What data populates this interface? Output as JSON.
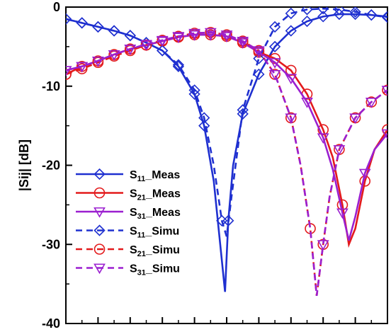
{
  "chart_data": {
    "type": "line",
    "ylabel": "|Sij| [dB]",
    "ylim": [
      -40,
      0
    ],
    "yticks": [
      "0",
      "-10",
      "-20",
      "-30",
      "-40"
    ],
    "xlim": [
      1,
      11
    ],
    "grid": false,
    "legend": {
      "placement": "lower-left",
      "entries": [
        {
          "sub": "11",
          "suffix": "_Meas"
        },
        {
          "sub": "21",
          "suffix": "_Meas"
        },
        {
          "sub": "31",
          "suffix": "_Meas"
        },
        {
          "sub": "11",
          "suffix": "_Simu"
        },
        {
          "sub": "21",
          "suffix": "_Simu"
        },
        {
          "sub": "31",
          "suffix": "_Simu"
        }
      ]
    },
    "series": [
      {
        "prefix": "S",
        "sub": "11",
        "suffix": "_Meas",
        "color": "#1f30d0",
        "dash": "solid",
        "marker": "diamond",
        "x": [
          1,
          1.5,
          2,
          2.5,
          3,
          3.5,
          4,
          4.5,
          5,
          5.3,
          5.6,
          5.8,
          5.95,
          6.05,
          6.2,
          6.5,
          7,
          7.5,
          8,
          8.5,
          9,
          9.5,
          10,
          10.5,
          11
        ],
        "y": [
          -1.5,
          -2.0,
          -2.5,
          -3.0,
          -3.6,
          -4.5,
          -5.5,
          -7.5,
          -11.0,
          -15.0,
          -22.0,
          -30.0,
          -36.0,
          -27.0,
          -20.0,
          -13.5,
          -8.5,
          -5.0,
          -3.0,
          -1.8,
          -1.2,
          -0.9,
          -0.9,
          -1.0,
          -1.2
        ],
        "marker_x": [
          1,
          1.5,
          2,
          2.5,
          3,
          3.5,
          4,
          4.5,
          5,
          5.3,
          6.05,
          6.5,
          7,
          7.5,
          8,
          8.5,
          9,
          9.5,
          10,
          10.5,
          11
        ]
      },
      {
        "prefix": "S",
        "sub": "21",
        "suffix": "_Meas",
        "color": "#e31a1c",
        "dash": "solid",
        "marker": "circle",
        "x": [
          1,
          1.5,
          2,
          2.5,
          3,
          3.5,
          4,
          4.5,
          5,
          5.5,
          6,
          6.5,
          7,
          7.5,
          8,
          8.5,
          9,
          9.3,
          9.6,
          9.8,
          10,
          10.3,
          10.6,
          11
        ],
        "y": [
          -8.5,
          -7.5,
          -6.8,
          -6.0,
          -5.3,
          -4.8,
          -4.3,
          -3.8,
          -3.5,
          -3.5,
          -3.7,
          -4.5,
          -5.7,
          -6.5,
          -8.0,
          -11.0,
          -15.5,
          -19.0,
          -25.0,
          -30.0,
          -28.0,
          -22.0,
          -18.0,
          -15.5
        ],
        "marker_x": [
          1,
          1.5,
          2,
          2.5,
          3,
          3.5,
          4,
          4.5,
          5,
          5.5,
          6,
          6.5,
          7,
          7.5,
          8,
          8.5,
          9,
          9.6,
          10.3,
          11
        ]
      },
      {
        "prefix": "S",
        "sub": "31",
        "suffix": "_Meas",
        "color": "#9b1fd0",
        "dash": "solid",
        "marker": "triangle-down",
        "x": [
          1,
          1.5,
          2,
          2.5,
          3,
          3.5,
          4,
          4.5,
          5,
          5.5,
          6,
          6.5,
          7,
          7.5,
          8,
          8.5,
          9,
          9.3,
          9.6,
          9.8,
          10,
          10.3,
          10.6,
          11
        ],
        "y": [
          -8.0,
          -7.5,
          -6.8,
          -6.0,
          -5.3,
          -4.8,
          -4.3,
          -3.8,
          -3.5,
          -3.5,
          -3.7,
          -4.5,
          -5.7,
          -7.0,
          -9.0,
          -12.0,
          -16.5,
          -20.5,
          -26.0,
          -29.5,
          -26.5,
          -21.0,
          -18.0,
          -16.0
        ],
        "marker_x": [
          1,
          1.5,
          2,
          2.5,
          3,
          3.5,
          4,
          4.5,
          5,
          5.5,
          6,
          6.5,
          7,
          7.5,
          8,
          8.5,
          9,
          9.6,
          10.3,
          11
        ]
      },
      {
        "prefix": "S",
        "sub": "11",
        "suffix": "_Simu",
        "color": "#1f30d0",
        "dash": "dashed",
        "marker": "diamond",
        "x": [
          1,
          1.5,
          2,
          2.5,
          3,
          3.5,
          4,
          4.5,
          5,
          5.3,
          5.6,
          5.85,
          6,
          6.15,
          6.5,
          7,
          7.5,
          8,
          8.5,
          9,
          9.5,
          10,
          10.5,
          11
        ],
        "y": [
          -1.5,
          -2.0,
          -2.5,
          -3.0,
          -3.6,
          -4.5,
          -5.5,
          -7.3,
          -10.5,
          -14.0,
          -20.0,
          -27.0,
          -29.0,
          -24.0,
          -13.0,
          -6.5,
          -2.5,
          -0.8,
          -0.3,
          -0.2,
          -0.3,
          -0.6,
          -1.0,
          -1.3
        ],
        "marker_x": [
          1,
          1.5,
          2,
          2.5,
          3,
          3.5,
          4,
          4.5,
          5,
          5.3,
          5.85,
          6.5,
          7,
          7.5,
          8,
          8.5,
          9,
          9.5,
          10,
          10.5,
          11
        ]
      },
      {
        "prefix": "S",
        "sub": "21",
        "suffix": "_Simu",
        "color": "#e31a1c",
        "dash": "dashed",
        "marker": "circle",
        "x": [
          1,
          1.5,
          2,
          2.5,
          3,
          3.5,
          4,
          4.5,
          5,
          5.5,
          6,
          6.5,
          7,
          7.5,
          8,
          8.3,
          8.6,
          8.8,
          9,
          9.2,
          9.5,
          10,
          10.5,
          11
        ],
        "y": [
          -8.5,
          -7.8,
          -7.0,
          -6.2,
          -5.5,
          -4.8,
          -4.2,
          -3.7,
          -3.3,
          -3.2,
          -3.5,
          -4.3,
          -5.5,
          -8.5,
          -14.0,
          -20.0,
          -28.0,
          -36.5,
          -30.0,
          -24.0,
          -18.0,
          -14.0,
          -12.0,
          -10.5
        ],
        "marker_x": [
          1,
          1.5,
          2,
          2.5,
          3,
          3.5,
          4,
          4.5,
          5,
          5.5,
          6,
          6.5,
          7,
          7.5,
          8,
          8.6,
          9,
          9.5,
          10,
          10.5,
          11
        ]
      },
      {
        "prefix": "S",
        "sub": "31",
        "suffix": "_Simu",
        "color": "#9b1fd0",
        "dash": "dashed",
        "marker": "triangle-down",
        "x": [
          1,
          1.5,
          2,
          2.5,
          3,
          3.5,
          4,
          4.5,
          5,
          5.5,
          6,
          6.5,
          7,
          7.5,
          8,
          8.3,
          8.6,
          8.8,
          9,
          9.2,
          9.5,
          10,
          10.5,
          11
        ],
        "y": [
          -8.0,
          -7.5,
          -6.8,
          -6.0,
          -5.3,
          -4.7,
          -4.2,
          -3.7,
          -3.3,
          -3.2,
          -3.5,
          -4.3,
          -5.5,
          -8.5,
          -14.0,
          -20.0,
          -28.0,
          -36.5,
          -30.0,
          -24.0,
          -18.0,
          -14.0,
          -12.0,
          -10.5
        ],
        "marker_x": [
          1,
          1.5,
          2,
          2.5,
          3,
          3.5,
          4,
          4.5,
          5,
          5.5,
          6,
          6.5,
          7,
          7.5,
          8,
          9,
          9.5,
          10,
          10.5,
          11
        ]
      }
    ]
  }
}
